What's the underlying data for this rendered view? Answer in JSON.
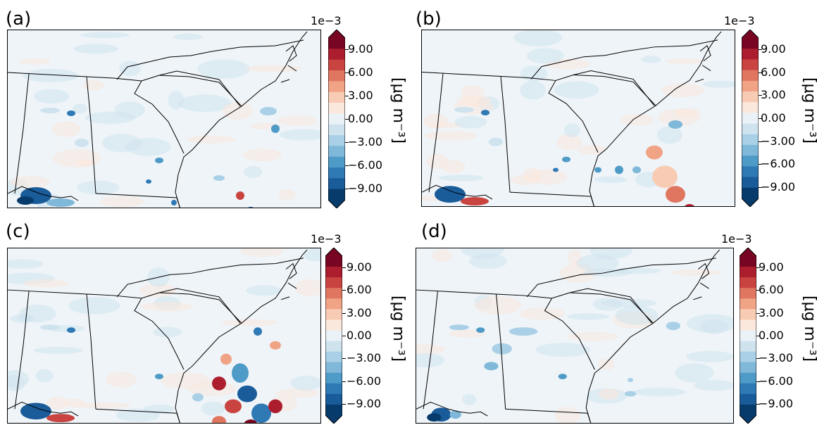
{
  "chart_data": [
    {
      "type": "heatmap",
      "panel_label": "(a)",
      "colorbar": {
        "exponent_label": "1e−3",
        "unit_label": "[μg m⁻³]",
        "tick_labels": [
          "9.00",
          "6.00",
          "3.00",
          "0.00",
          "−3.00",
          "−6.00",
          "−9.00"
        ],
        "ticks": [
          9,
          6,
          3,
          0,
          -3,
          -6,
          -9
        ],
        "range": [
          -10.5,
          10.5
        ],
        "extend": "both",
        "colormap": "RdBu_r"
      }
    },
    {
      "type": "heatmap",
      "panel_label": "(b)",
      "colorbar": {
        "exponent_label": "1e−3",
        "unit_label": "[μg m⁻³]",
        "tick_labels": [
          "9.00",
          "6.00",
          "3.00",
          "0.00",
          "−3.00",
          "−6.00",
          "−9.00"
        ],
        "ticks": [
          9,
          6,
          3,
          0,
          -3,
          -6,
          -9
        ],
        "range": [
          -10.5,
          10.5
        ],
        "extend": "both",
        "colormap": "RdBu_r"
      }
    },
    {
      "type": "heatmap",
      "panel_label": "(c)",
      "colorbar": {
        "exponent_label": "1e−3",
        "unit_label": "[μg m⁻³]",
        "tick_labels": [
          "9.00",
          "6.00",
          "3.00",
          "0.00",
          "−3.00",
          "−6.00",
          "−9.00"
        ],
        "ticks": [
          9,
          6,
          3,
          0,
          -3,
          -6,
          -9
        ],
        "range": [
          -10.5,
          10.5
        ],
        "extend": "both",
        "colormap": "RdBu_r"
      }
    },
    {
      "type": "heatmap",
      "panel_label": "(d)",
      "colorbar": {
        "exponent_label": "1e−3",
        "unit_label": "[μg m⁻³]",
        "tick_labels": [
          "9.00",
          "6.00",
          "3.00",
          "0.00",
          "−3.00",
          "−6.00",
          "−9.00"
        ],
        "ticks": [
          9,
          6,
          3,
          0,
          -3,
          -6,
          -9
        ],
        "range": [
          -10.5,
          10.5
        ],
        "extend": "both",
        "colormap": "RdBu_r"
      }
    }
  ],
  "colors": {
    "levels": [
      "#073b6b",
      "#1a5b9a",
      "#2f79b5",
      "#4f9bc7",
      "#7fb8d9",
      "#a9d0e6",
      "#cfe3ef",
      "#eaf2f7",
      "#fbe8dd",
      "#f8ccb4",
      "#f1a386",
      "#e0765f",
      "#c94441",
      "#ac1e2d",
      "#780622"
    ],
    "land_fill": "#eef4f8",
    "border": "#000000"
  }
}
